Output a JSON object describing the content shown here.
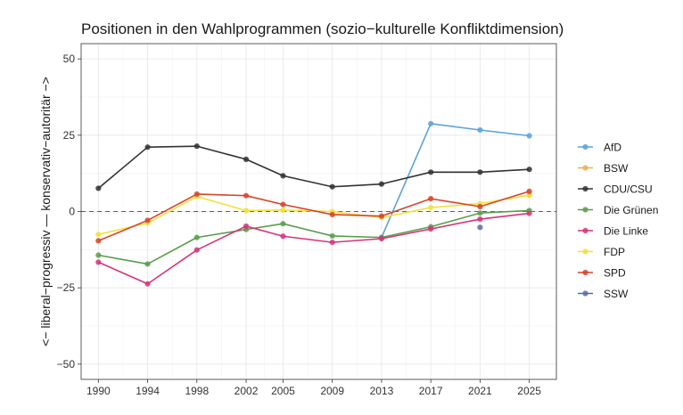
{
  "chart_data": {
    "type": "line",
    "title": "Positionen in den Wahlprogrammen (sozio−kulturelle Konfliktdimension)",
    "xlabel": "",
    "ylabel": "<− liberal−progressiv — konservativ−autoritär −>",
    "x": [
      1990,
      1994,
      1998,
      2002,
      2005,
      2009,
      2013,
      2017,
      2021,
      2025
    ],
    "xticks": [
      "1990",
      "1994",
      "1998",
      "2002",
      "2005",
      "2009",
      "2013",
      "2017",
      "2021",
      "2025"
    ],
    "yticks": [
      -50,
      -25,
      0,
      25,
      50
    ],
    "ytick_labels": [
      "−50",
      "−25",
      "0",
      "25",
      "50"
    ],
    "ylim": [
      -55,
      55
    ],
    "xlim": [
      1988.6,
      2027.2
    ],
    "grid": true,
    "reference_line": 0,
    "legend_position": "right",
    "series": [
      {
        "name": "AfD",
        "color": "#5ba3dc",
        "values": [
          null,
          null,
          null,
          null,
          null,
          null,
          -8.5,
          28.8,
          26.7,
          24.8
        ]
      },
      {
        "name": "BSW",
        "color": "#f0b050",
        "values": [
          null,
          null,
          null,
          null,
          null,
          null,
          null,
          null,
          null,
          5.5
        ]
      },
      {
        "name": "CDU/CSU",
        "color": "#333333",
        "values": [
          7.6,
          21.1,
          21.4,
          17.1,
          11.7,
          8.1,
          9.0,
          12.9,
          12.9,
          13.8
        ]
      },
      {
        "name": "Die Grünen",
        "color": "#5a9e4b",
        "values": [
          -14.3,
          -17.2,
          -8.5,
          -5.9,
          -4.0,
          -8.0,
          -8.5,
          -5.0,
          -0.5,
          0.3
        ]
      },
      {
        "name": "Die Linke",
        "color": "#d6347a",
        "values": [
          -16.6,
          -23.7,
          -12.6,
          -4.8,
          -8.1,
          -10.1,
          -8.9,
          -5.7,
          -2.5,
          -0.6
        ]
      },
      {
        "name": "FDP",
        "color": "#f2e23a",
        "values": [
          -7.5,
          -3.8,
          4.9,
          0.3,
          0.5,
          0.0,
          -2.0,
          1.3,
          2.6,
          5.3
        ]
      },
      {
        "name": "SPD",
        "color": "#d8432a",
        "values": [
          -9.6,
          -2.9,
          5.7,
          5.2,
          2.3,
          -1.0,
          -1.5,
          4.2,
          1.6,
          6.6
        ]
      },
      {
        "name": "SSW",
        "color": "#5a6aa8",
        "values": [
          null,
          null,
          null,
          null,
          null,
          null,
          null,
          null,
          -5.2,
          null
        ]
      }
    ]
  }
}
